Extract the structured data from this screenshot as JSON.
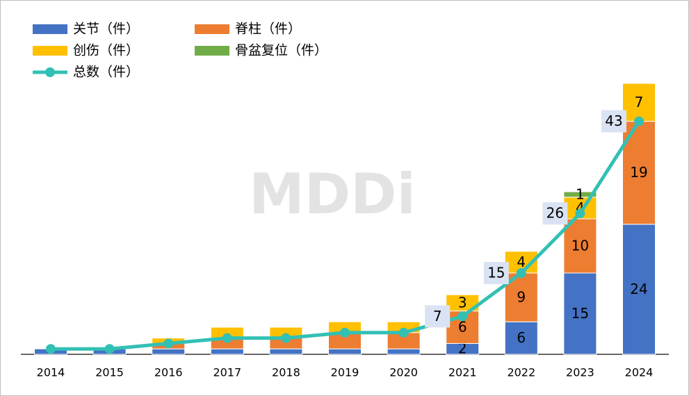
{
  "chart_data": {
    "type": "bar_line",
    "watermark": "MDDi",
    "categories": [
      "2014",
      "2015",
      "2016",
      "2017",
      "2018",
      "2019",
      "2020",
      "2021",
      "2022",
      "2023",
      "2024"
    ],
    "series": [
      {
        "name": "关节（件）",
        "color": "#4472c4",
        "values": [
          1,
          1,
          1,
          1,
          1,
          1,
          1,
          2,
          6,
          15,
          24
        ],
        "data_labels": [
          false,
          false,
          false,
          false,
          false,
          false,
          false,
          true,
          true,
          true,
          true
        ]
      },
      {
        "name": "脊柱（件）",
        "color": "#ed7d31",
        "values": [
          0,
          0,
          1,
          2,
          2,
          3,
          3,
          6,
          9,
          10,
          19
        ],
        "data_labels": [
          false,
          false,
          false,
          false,
          false,
          false,
          false,
          true,
          true,
          true,
          true
        ]
      },
      {
        "name": "创伤（件）",
        "color": "#ffc000",
        "values": [
          0,
          0,
          1,
          2,
          2,
          2,
          2,
          3,
          4,
          4,
          7
        ],
        "data_labels": [
          false,
          false,
          false,
          false,
          false,
          false,
          false,
          true,
          true,
          true,
          true
        ]
      },
      {
        "name": "骨盆复位（件）",
        "color": "#70ad47",
        "values": [
          0,
          0,
          0,
          0,
          0,
          0,
          0,
          0,
          0,
          1,
          0
        ],
        "data_labels": [
          false,
          false,
          false,
          false,
          false,
          false,
          false,
          false,
          false,
          true,
          false
        ]
      }
    ],
    "line": {
      "name": "总数（件）",
      "color": "#33c0b4",
      "values": [
        1,
        1,
        2,
        3,
        3,
        4,
        4,
        7,
        15,
        26,
        43
      ],
      "data_labels": [
        false,
        false,
        false,
        false,
        false,
        false,
        false,
        true,
        true,
        true,
        true
      ]
    },
    "ylim": [
      0,
      50
    ]
  }
}
